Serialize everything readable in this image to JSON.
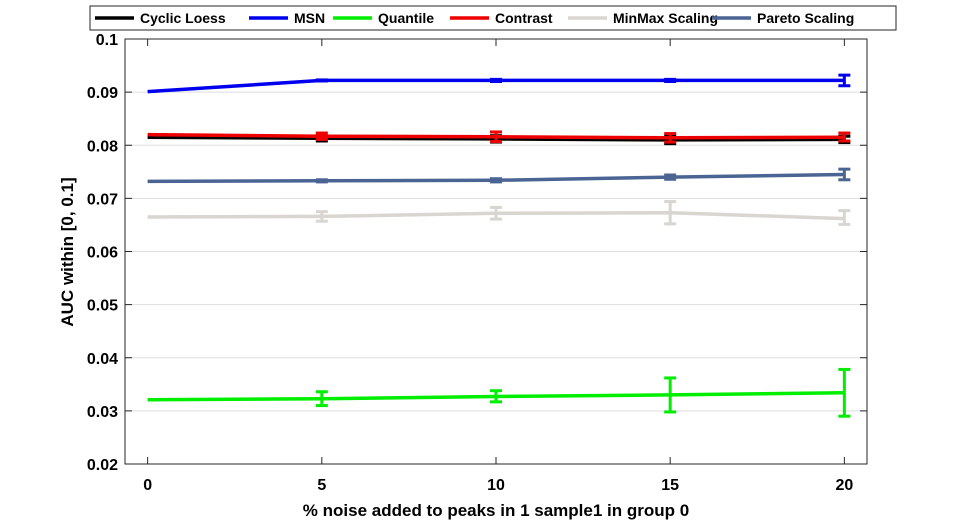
{
  "chart_data": {
    "type": "line",
    "title": "",
    "xlabel": "% noise added to peaks in 1 sample1 in group 0",
    "ylabel": "AUC within [0, 0.1]",
    "x": [
      0,
      5,
      10,
      15,
      20
    ],
    "xlim": [
      -0.65,
      20.65
    ],
    "ylim": [
      0.02,
      0.1
    ],
    "x_ticks": [
      0,
      5,
      10,
      15,
      20
    ],
    "x_tick_labels": [
      "0",
      "5",
      "10",
      "15",
      "20"
    ],
    "y_ticks": [
      0.02,
      0.03,
      0.04,
      0.05,
      0.06,
      0.07,
      0.08,
      0.09,
      0.1
    ],
    "y_tick_labels": [
      "0.02",
      "0.03",
      "0.04",
      "0.05",
      "0.06",
      "0.07",
      "0.08",
      "0.09",
      "0.1"
    ],
    "grid": "horizontal",
    "legend_position": "top",
    "series": [
      {
        "name": "Cyclic Loess",
        "color": "#000000",
        "values": [
          0.0815,
          0.0813,
          0.0812,
          0.081,
          0.0811
        ],
        "err_low": [
          null,
          0.0808,
          0.0806,
          0.0803,
          0.0805
        ],
        "err_high": [
          null,
          0.0818,
          0.0818,
          0.0817,
          0.0817
        ]
      },
      {
        "name": "MSN",
        "color": "#0000ee",
        "values": [
          0.0901,
          0.0922,
          0.0922,
          0.0922,
          0.0922
        ],
        "err_low": [
          null,
          0.0921,
          0.092,
          0.092,
          0.0912
        ],
        "err_high": [
          null,
          0.0923,
          0.0924,
          0.0924,
          0.0932
        ]
      },
      {
        "name": "Quantile",
        "color": "#00ee00",
        "values": [
          0.0321,
          0.0323,
          0.0327,
          0.033,
          0.0334
        ],
        "err_low": [
          null,
          0.031,
          0.0317,
          0.0298,
          0.029
        ],
        "err_high": [
          null,
          0.0336,
          0.0338,
          0.0362,
          0.0378
        ]
      },
      {
        "name": "Contrast",
        "color": "#ee0000",
        "values": [
          0.082,
          0.0817,
          0.0816,
          0.0814,
          0.0815
        ],
        "err_low": [
          null,
          0.0811,
          0.0807,
          0.0806,
          0.0808
        ],
        "err_high": [
          null,
          0.0823,
          0.0825,
          0.0822,
          0.0823
        ]
      },
      {
        "name": "MinMax Scaling",
        "color": "#d9d5d0",
        "values": [
          0.0665,
          0.0666,
          0.0672,
          0.0673,
          0.0662
        ],
        "err_low": [
          null,
          0.0657,
          0.0661,
          0.0652,
          0.0651
        ],
        "err_high": [
          null,
          0.0675,
          0.0683,
          0.0694,
          0.0677
        ]
      },
      {
        "name": "Pareto Scaling",
        "color": "#4a6494",
        "values": [
          0.0732,
          0.0733,
          0.0734,
          0.074,
          0.0745
        ],
        "err_low": [
          null,
          0.0731,
          0.0731,
          0.0736,
          0.0735
        ],
        "err_high": [
          null,
          0.0735,
          0.0737,
          0.0744,
          0.0755
        ]
      }
    ]
  }
}
